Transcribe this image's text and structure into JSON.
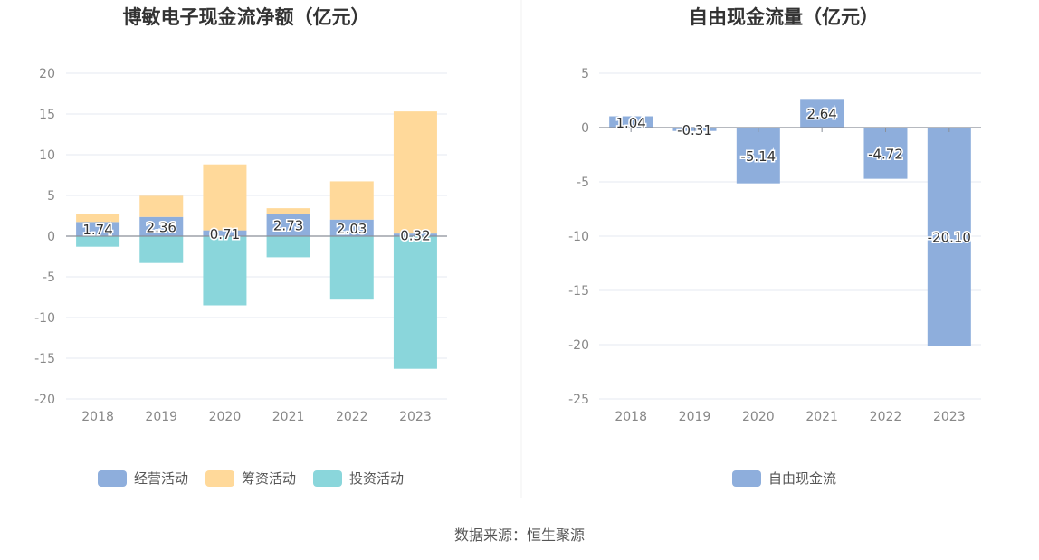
{
  "colors": {
    "operating": "#8EAEDC",
    "financing": "#FFD99A",
    "investing": "#8AD6DB",
    "free_cash_flow": "#8EAEDC",
    "grid": "#E6E9F0",
    "axis_text": "#888888",
    "title_text": "#333333"
  },
  "chart_data": [
    {
      "type": "bar",
      "stacked": true,
      "title": "博敏电子现金流净额（亿元）",
      "categories": [
        "2018",
        "2019",
        "2020",
        "2021",
        "2022",
        "2023"
      ],
      "yticks": [
        "20",
        "15",
        "10",
        "5",
        "0",
        "-5",
        "-10",
        "-15",
        "-20"
      ],
      "ylim": [
        -20,
        20
      ],
      "grid": true,
      "legend_position": "bottom",
      "series": [
        {
          "name": "经营活动",
          "color_key": "operating",
          "values": [
            1.74,
            2.36,
            0.71,
            2.73,
            2.03,
            0.32
          ],
          "labels": [
            "1.74",
            "2.36",
            "0.71",
            "2.73",
            "2.03",
            "0.32"
          ]
        },
        {
          "name": "筹资活动",
          "color_key": "financing",
          "values": [
            1.0,
            2.6,
            8.1,
            0.7,
            4.7,
            15.0
          ]
        },
        {
          "name": "投资活动",
          "color_key": "investing",
          "values": [
            -1.3,
            -3.3,
            -8.5,
            -2.6,
            -7.8,
            -16.3
          ]
        }
      ]
    },
    {
      "type": "bar",
      "title": "自由现金流量（亿元）",
      "categories": [
        "2018",
        "2019",
        "2020",
        "2021",
        "2022",
        "2023"
      ],
      "yticks": [
        "5",
        "0",
        "-5",
        "-10",
        "-15",
        "-20",
        "-25"
      ],
      "ylim": [
        -25,
        5
      ],
      "grid": true,
      "legend_position": "bottom",
      "series": [
        {
          "name": "自由现金流",
          "color_key": "free_cash_flow",
          "values": [
            1.04,
            -0.31,
            -5.14,
            2.64,
            -4.72,
            -20.1
          ],
          "labels": [
            "1.04",
            "-0.31",
            "-5.14",
            "2.64",
            "-4.72",
            "-20.10"
          ]
        }
      ]
    }
  ],
  "footer": {
    "source": "数据来源：恒生聚源"
  }
}
